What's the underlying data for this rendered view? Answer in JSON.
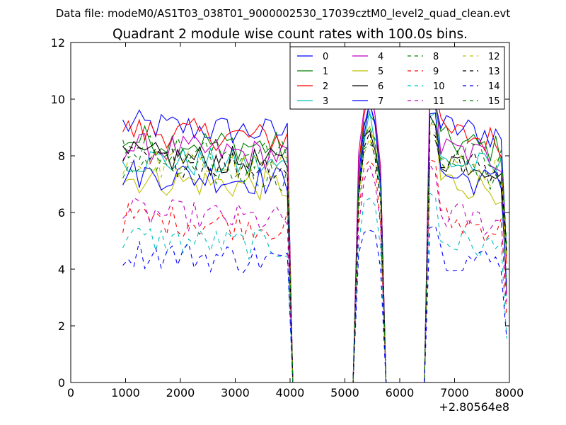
{
  "chart_data": {
    "type": "line",
    "suptitle": "Data file: modeM0/AS1T03_038T01_9000002530_17039cztM0_level2_quad_clean.evt",
    "title": "Quadrant 2 module wise count rates with 100.0s bins.",
    "xlabel": "",
    "ylabel": "",
    "offset_label": "+2.80564e8",
    "xlim": [
      0,
      8000
    ],
    "ylim": [
      0,
      12
    ],
    "xticks": [
      "0",
      "1000",
      "2000",
      "3000",
      "4000",
      "5000",
      "6000",
      "7000",
      "8000"
    ],
    "yticks": [
      "0",
      "2",
      "4",
      "6",
      "8",
      "10",
      "12"
    ],
    "legend_position": "top-right",
    "segments": [
      {
        "x_start": 950,
        "x_end": 3950
      },
      {
        "x_start": 5250,
        "x_end": 5650
      },
      {
        "x_start": 6550,
        "x_end": 7850
      }
    ],
    "series": [
      {
        "name": "0",
        "color": "#0000ff",
        "dash": "solid",
        "level": 9.1,
        "peak": 10.0
      },
      {
        "name": "1",
        "color": "#008000",
        "dash": "solid",
        "level": 8.6,
        "peak": 9.8
      },
      {
        "name": "2",
        "color": "#ff0000",
        "dash": "solid",
        "level": 8.9,
        "peak": 10.3
      },
      {
        "name": "3",
        "color": "#00bfbf",
        "dash": "solid",
        "level": 7.9,
        "peak": 9.4
      },
      {
        "name": "4",
        "color": "#bf00bf",
        "dash": "solid",
        "level": 8.3,
        "peak": 10.4
      },
      {
        "name": "5",
        "color": "#bfbf00",
        "dash": "solid",
        "level": 7.2,
        "peak": 9.1
      },
      {
        "name": "6",
        "color": "#000000",
        "dash": "solid",
        "level": 8.0,
        "peak": 9.2
      },
      {
        "name": "7",
        "color": "#0000ff",
        "dash": "solid",
        "level": 7.4,
        "peak": 9.6
      },
      {
        "name": "8",
        "color": "#008000",
        "dash": "dashed",
        "level": 7.6,
        "peak": 8.6
      },
      {
        "name": "9",
        "color": "#ff0000",
        "dash": "dashed",
        "level": 5.8,
        "peak": 7.9
      },
      {
        "name": "10",
        "color": "#00bfbf",
        "dash": "dashed",
        "level": 5.1,
        "peak": 6.6
      },
      {
        "name": "11",
        "color": "#bf00bf",
        "dash": "dashed",
        "level": 6.0,
        "peak": 7.4
      },
      {
        "name": "12",
        "color": "#bfbf00",
        "dash": "dashed",
        "level": 7.8,
        "peak": 8.9
      },
      {
        "name": "13",
        "color": "#000000",
        "dash": "dashed",
        "level": 7.9,
        "peak": 8.8
      },
      {
        "name": "14",
        "color": "#0000ff",
        "dash": "dashed",
        "level": 4.6,
        "peak": 5.7
      },
      {
        "name": "15",
        "color": "#008000",
        "dash": "dashed",
        "level": 8.3,
        "peak": 9.2
      }
    ]
  }
}
